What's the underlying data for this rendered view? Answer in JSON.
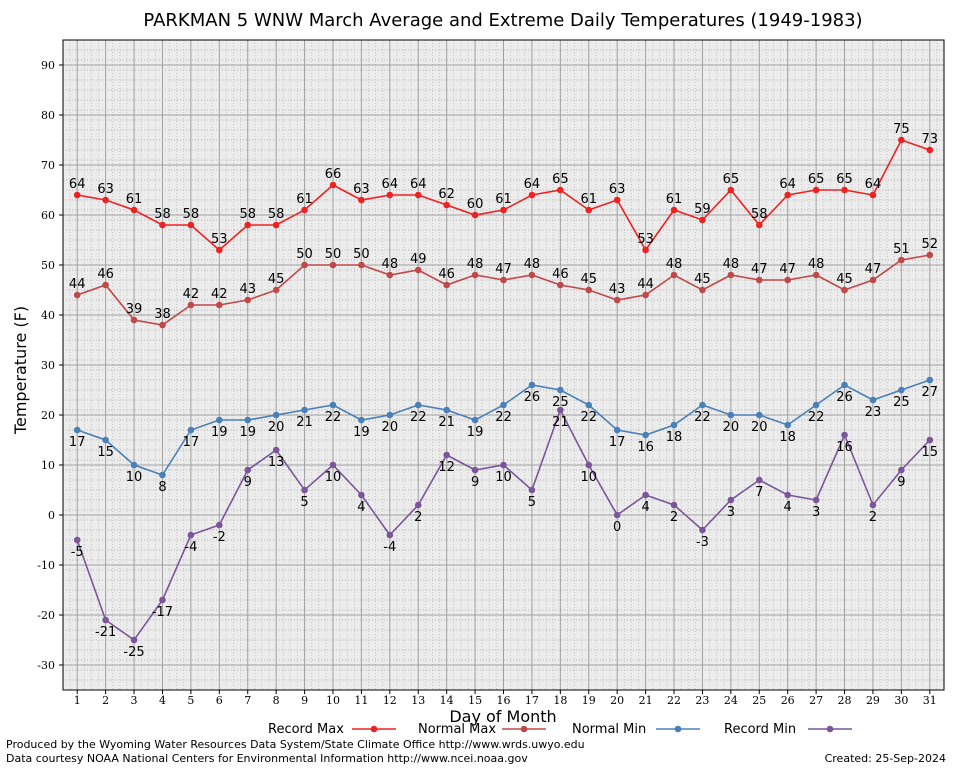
{
  "chart_data": {
    "type": "line",
    "title": "PARKMAN 5 WNW March Average and Extreme Daily Temperatures (1949-1983)",
    "xlabel": "Day of Month",
    "ylabel": "Temperature (F)",
    "ylim": [
      -35,
      95
    ],
    "xlim": [
      0.5,
      31.5
    ],
    "grid": true,
    "legend_position": "bottom",
    "x": [
      1,
      2,
      3,
      4,
      5,
      6,
      7,
      8,
      9,
      10,
      11,
      12,
      13,
      14,
      15,
      16,
      17,
      18,
      19,
      20,
      21,
      22,
      23,
      24,
      25,
      26,
      27,
      28,
      29,
      30,
      31
    ],
    "y_ticks": [
      -30,
      -20,
      -10,
      0,
      10,
      20,
      30,
      40,
      50,
      60,
      70,
      80,
      90
    ],
    "series": [
      {
        "name": "Record Max",
        "color": "#ee2222",
        "label_position": "above",
        "values": [
          64,
          63,
          61,
          58,
          58,
          53,
          58,
          58,
          61,
          66,
          63,
          64,
          64,
          62,
          60,
          61,
          64,
          65,
          61,
          63,
          53,
          61,
          59,
          65,
          58,
          64,
          65,
          65,
          64,
          75,
          73
        ]
      },
      {
        "name": "Normal Max",
        "color": "#c04848",
        "label_position": "above",
        "values": [
          44,
          46,
          39,
          38,
          42,
          42,
          43,
          45,
          50,
          50,
          50,
          48,
          49,
          46,
          48,
          47,
          48,
          46,
          45,
          43,
          44,
          48,
          45,
          48,
          47,
          47,
          48,
          45,
          47,
          51,
          52
        ]
      },
      {
        "name": "Normal Min",
        "color": "#4a80b8",
        "label_position": "below",
        "values": [
          17,
          15,
          10,
          8,
          17,
          19,
          19,
          20,
          21,
          22,
          19,
          20,
          22,
          21,
          19,
          22,
          26,
          25,
          22,
          17,
          16,
          18,
          22,
          20,
          20,
          18,
          22,
          26,
          23,
          25,
          27
        ]
      },
      {
        "name": "Record Min",
        "color": "#7a559a",
        "label_position": "below",
        "values": [
          -5,
          -21,
          -25,
          -17,
          -4,
          -2,
          9,
          13,
          5,
          10,
          4,
          -4,
          2,
          12,
          9,
          10,
          5,
          21,
          10,
          0,
          4,
          2,
          -3,
          3,
          7,
          4,
          3,
          16,
          2,
          9,
          15
        ]
      }
    ]
  },
  "footer": {
    "credit_line1": "Produced by the Wyoming Water Resources Data System/State Climate Office http://www.wrds.uwyo.edu",
    "credit_line2": "Data courtesy NOAA National Centers for Environmental Information http://www.ncei.noaa.gov",
    "created": "Created:  25-Sep-2024"
  }
}
